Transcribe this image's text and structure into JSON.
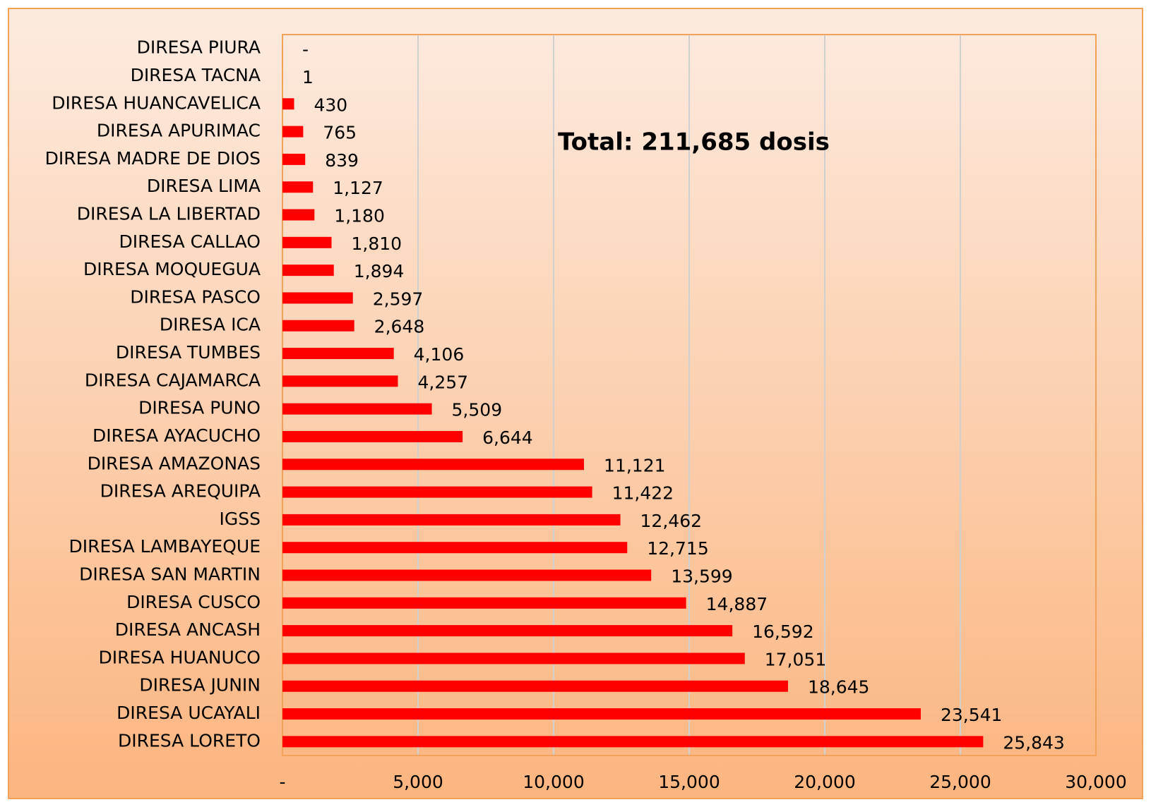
{
  "chart_data": {
    "type": "barh",
    "annotation": "Total: 211,685 dosis",
    "categories": [
      "DIRESA PIURA",
      "DIRESA TACNA",
      "DIRESA HUANCAVELICA",
      "DIRESA APURIMAC",
      "DIRESA MADRE DE DIOS",
      "DIRESA LIMA",
      "DIRESA LA LIBERTAD",
      "DIRESA CALLAO",
      "DIRESA MOQUEGUA",
      "DIRESA PASCO",
      "DIRESA ICA",
      "DIRESA TUMBES",
      "DIRESA CAJAMARCA",
      "DIRESA PUNO",
      "DIRESA AYACUCHO",
      "DIRESA AMAZONAS",
      "DIRESA AREQUIPA",
      "IGSS",
      "DIRESA LAMBAYEQUE",
      "DIRESA SAN MARTIN",
      "DIRESA CUSCO",
      "DIRESA ANCASH",
      "DIRESA HUANUCO",
      "DIRESA JUNIN",
      "DIRESA UCAYALI",
      "DIRESA LORETO"
    ],
    "values": [
      0,
      1,
      430,
      765,
      839,
      1127,
      1180,
      1810,
      1894,
      2597,
      2648,
      4106,
      4257,
      5509,
      6644,
      11121,
      11422,
      12462,
      12715,
      13599,
      14887,
      16592,
      17051,
      18645,
      23541,
      25843
    ],
    "value_labels": [
      "-",
      "1",
      "430",
      "765",
      "839",
      "1,127",
      "1,180",
      "1,810",
      "1,894",
      "2,597",
      "2,648",
      "4,106",
      "4,257",
      "5,509",
      "6,644",
      "11,121",
      "11,422",
      "12,462",
      "12,715",
      "13,599",
      "14,887",
      "16,592",
      "17,051",
      "18,645",
      "23,541",
      "25,843"
    ],
    "color": "#ff0000",
    "xlim": [
      0,
      30000
    ],
    "xticks": [
      {
        "value": 0,
        "label": "-"
      },
      {
        "value": 5000,
        "label": "5,000"
      },
      {
        "value": 10000,
        "label": "10,000"
      },
      {
        "value": 15000,
        "label": "15,000"
      },
      {
        "value": 20000,
        "label": "20,000"
      },
      {
        "value": 25000,
        "label": "25,000"
      },
      {
        "value": 30000,
        "label": "30,000"
      }
    ],
    "grid": true
  }
}
